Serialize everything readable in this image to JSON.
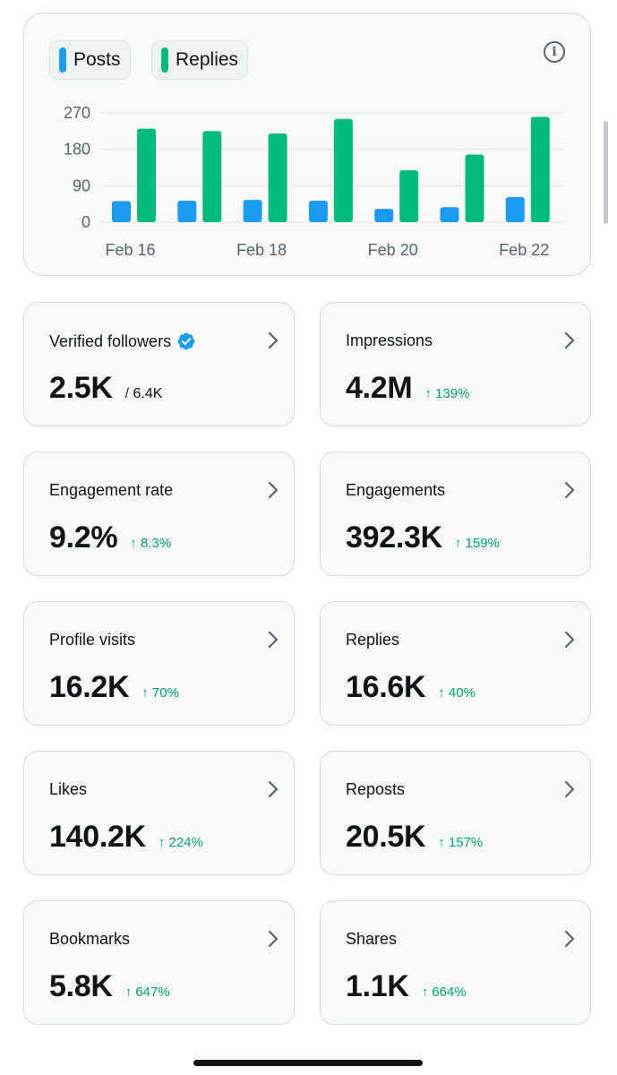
{
  "legend": {
    "posts": {
      "label": "Posts",
      "color": "#1d9bf0"
    },
    "replies": {
      "label": "Replies",
      "color": "#00ba7c"
    }
  },
  "info_icon": "info-icon",
  "chart_data": {
    "type": "bar",
    "categories": [
      "Feb 16",
      "Feb 17",
      "Feb 18",
      "Feb 19",
      "Feb 20",
      "Feb 21",
      "Feb 22"
    ],
    "x_tick_labels": [
      "Feb 16",
      "Feb 18",
      "Feb 20",
      "Feb 22"
    ],
    "y_tick_labels": [
      "270",
      "180",
      "90",
      "0"
    ],
    "series": [
      {
        "name": "Posts",
        "values": [
          52,
          53,
          55,
          53,
          33,
          37,
          62
        ],
        "color": "#1d9bf0"
      },
      {
        "name": "Replies",
        "values": [
          231,
          225,
          219,
          255,
          128,
          167,
          260
        ],
        "color": "#00ba7c"
      }
    ],
    "ylim": [
      0,
      270
    ],
    "grid": true,
    "legend_position": "top-left"
  },
  "metrics": [
    {
      "label": "Verified followers",
      "value": "2.5K",
      "total": "/ 6.4K",
      "change": "",
      "verified_icon": "verified-badge-icon"
    },
    {
      "label": "Impressions",
      "value": "4.2M",
      "total": "",
      "change": "↑ 139%"
    },
    {
      "label": "Engagement rate",
      "value": "9.2%",
      "total": "",
      "change": "↑ 8.3%"
    },
    {
      "label": "Engagements",
      "value": "392.3K",
      "total": "",
      "change": "↑ 159%"
    },
    {
      "label": "Profile visits",
      "value": "16.2K",
      "total": "",
      "change": "↑ 70%"
    },
    {
      "label": "Replies",
      "value": "16.6K",
      "total": "",
      "change": "↑ 40%"
    },
    {
      "label": "Likes",
      "value": "140.2K",
      "total": "",
      "change": "↑ 224%"
    },
    {
      "label": "Reposts",
      "value": "20.5K",
      "total": "",
      "change": "↑ 157%"
    },
    {
      "label": "Bookmarks",
      "value": "5.8K",
      "total": "",
      "change": "↑ 647%"
    },
    {
      "label": "Shares",
      "value": "1.1K",
      "total": "",
      "change": "↑ 664%"
    }
  ],
  "colors": {
    "positive": "#00a36b",
    "verified": "#1d9bf0"
  }
}
